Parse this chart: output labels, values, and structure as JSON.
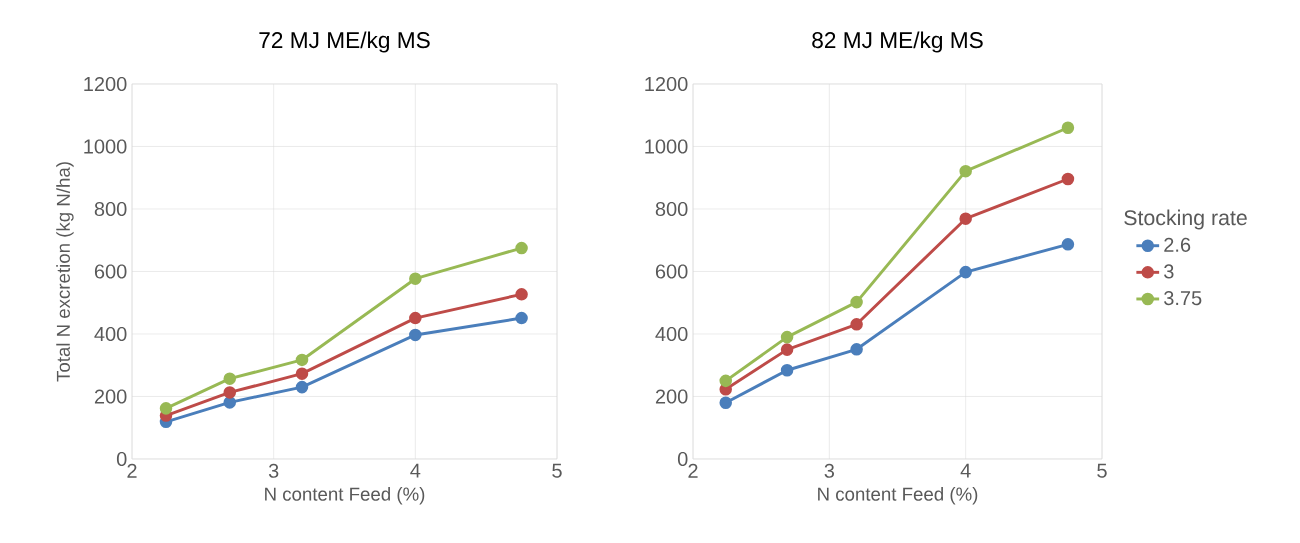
{
  "chart_data": [
    {
      "type": "line",
      "title": "72 MJ ME/kg MS",
      "xlabel": "N content Feed (%)",
      "ylabel": "Total N excretion (kg N/ha)",
      "x": [
        2.24,
        2.69,
        3.2,
        4,
        4.75
      ],
      "xlim": [
        2,
        5
      ],
      "ylim": [
        0,
        1200
      ],
      "xticks": [
        2,
        3,
        4,
        5
      ],
      "yticks": [
        0,
        200,
        400,
        600,
        800,
        1000,
        1200
      ],
      "grid": true,
      "marker": "circle",
      "legend": false,
      "series": [
        {
          "color": "#4a7ebb",
          "values": [
            119,
            181,
            230,
            397,
            451
          ]
        },
        {
          "color": "#be4b48",
          "values": [
            139,
            213,
            273,
            451,
            527
          ]
        },
        {
          "color": "#98b954",
          "values": [
            162,
            257,
            317,
            577,
            675
          ]
        }
      ]
    },
    {
      "type": "line",
      "title": "82 MJ ME/kg MS",
      "xlabel": "N content Feed (%)",
      "legend_title": "Stocking rate",
      "x": [
        2.24,
        2.69,
        3.2,
        4,
        4.75
      ],
      "xlim": [
        2,
        5
      ],
      "ylim": [
        0,
        1200
      ],
      "xticks": [
        2,
        3,
        4,
        5
      ],
      "yticks": [
        0,
        200,
        400,
        600,
        800,
        1000,
        1200
      ],
      "grid": true,
      "marker": "circle",
      "legend": "right",
      "series": [
        {
          "name": "2.6",
          "color": "#4a7ebb",
          "values": [
            180,
            284,
            351,
            598,
            687
          ]
        },
        {
          "name": "3",
          "color": "#be4b48",
          "values": [
            223,
            350,
            431,
            769,
            896
          ]
        },
        {
          "name": "3.75",
          "color": "#98b954",
          "values": [
            250,
            390,
            502,
            921,
            1060
          ]
        }
      ]
    }
  ]
}
